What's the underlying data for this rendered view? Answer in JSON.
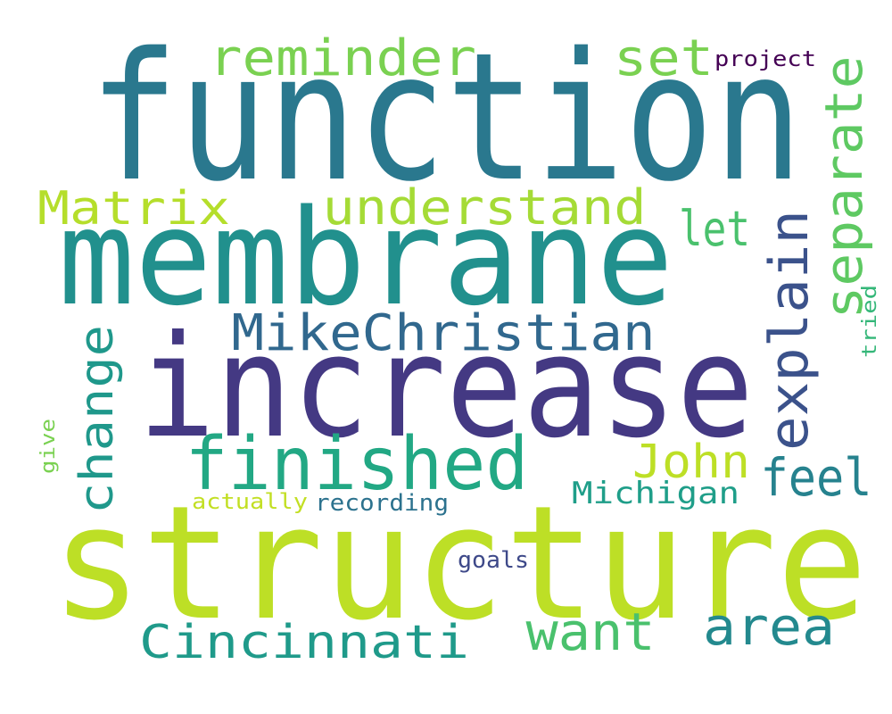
{
  "words": [
    {
      "id": "function",
      "text": "function",
      "color": "#2a788e"
    },
    {
      "id": "membrane",
      "text": "membrane",
      "color": "#21908d"
    },
    {
      "id": "increase",
      "text": "increase",
      "color": "#443983"
    },
    {
      "id": "structure",
      "text": "structure",
      "color": "#bddf26"
    },
    {
      "id": "finished",
      "text": "finished",
      "color": "#22a884"
    },
    {
      "id": "MikeChristian",
      "text": "MikeChristian",
      "color": "#31688e"
    },
    {
      "id": "understand",
      "text": "understand",
      "color": "#a5db36"
    },
    {
      "id": "reminder",
      "text": "reminder",
      "color": "#7ad151"
    },
    {
      "id": "set",
      "text": "set",
      "color": "#7ad151"
    },
    {
      "id": "project",
      "text": "project",
      "color": "#440154"
    },
    {
      "id": "Matrix",
      "text": "Matrix",
      "color": "#b5de2b"
    },
    {
      "id": "let",
      "text": "let",
      "color": "#4ac16d"
    },
    {
      "id": "separate",
      "text": "separate",
      "color": "#5ec962"
    },
    {
      "id": "explain",
      "text": "explain",
      "color": "#3b528b"
    },
    {
      "id": "change",
      "text": "change",
      "color": "#1f988b"
    },
    {
      "id": "John",
      "text": "John",
      "color": "#bddf26"
    },
    {
      "id": "feel",
      "text": "feel",
      "color": "#26828e"
    },
    {
      "id": "Michigan",
      "text": "Michigan",
      "color": "#1f9e89"
    },
    {
      "id": "recording",
      "text": "recording",
      "color": "#2c728e"
    },
    {
      "id": "actually",
      "text": "actually",
      "color": "#c2df23"
    },
    {
      "id": "goals",
      "text": "goals",
      "color": "#3e4989"
    },
    {
      "id": "want",
      "text": "want",
      "color": "#4ac16d"
    },
    {
      "id": "area",
      "text": "area",
      "color": "#23898e"
    },
    {
      "id": "Cincinnati",
      "text": "Cincinnati",
      "color": "#1f9a8a"
    },
    {
      "id": "give",
      "text": "give",
      "color": "#7ad151"
    },
    {
      "id": "tried",
      "text": "tried",
      "color": "#35b779"
    }
  ]
}
